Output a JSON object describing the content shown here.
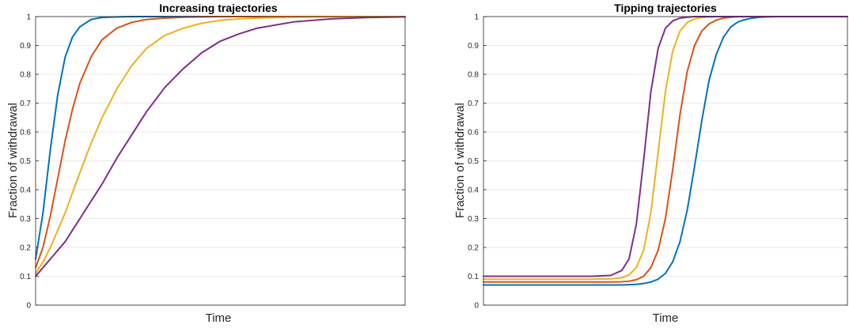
{
  "chart_data": [
    {
      "type": "line",
      "title": "Increasing trajectories",
      "xlabel": "Time",
      "ylabel": "Fraction of withdrawal",
      "ylim": [
        0,
        1
      ],
      "yticks": [
        "0",
        "0.1",
        "0.2",
        "0.3",
        "0.4",
        "0.5",
        "0.6",
        "0.7",
        "0.8",
        "0.9",
        "1"
      ],
      "grid": true,
      "x": [
        0,
        0.02,
        0.04,
        0.06,
        0.08,
        0.1,
        0.12,
        0.15,
        0.18,
        0.22,
        0.26,
        0.3,
        0.35,
        0.4,
        0.45,
        0.5,
        0.55,
        0.6,
        0.7,
        0.8,
        0.9,
        1.0
      ],
      "series": [
        {
          "color": "#0072BD",
          "values": [
            0.16,
            0.32,
            0.54,
            0.73,
            0.86,
            0.93,
            0.965,
            0.99,
            0.997,
            0.999,
            1,
            1,
            1,
            1,
            1,
            1,
            1,
            1,
            1,
            1,
            1,
            1
          ]
        },
        {
          "color": "#D95319",
          "values": [
            0.13,
            0.2,
            0.31,
            0.44,
            0.57,
            0.68,
            0.77,
            0.86,
            0.92,
            0.96,
            0.98,
            0.99,
            0.995,
            0.998,
            0.999,
            1,
            1,
            1,
            1,
            1,
            1,
            1
          ]
        },
        {
          "color": "#EDB120",
          "values": [
            0.11,
            0.15,
            0.2,
            0.26,
            0.32,
            0.39,
            0.46,
            0.56,
            0.65,
            0.75,
            0.83,
            0.89,
            0.935,
            0.96,
            0.977,
            0.987,
            0.992,
            0.995,
            0.998,
            0.999,
            1,
            1
          ]
        },
        {
          "color": "#7E2F8E",
          "values": [
            0.1,
            0.13,
            0.16,
            0.19,
            0.22,
            0.26,
            0.3,
            0.36,
            0.42,
            0.51,
            0.59,
            0.67,
            0.755,
            0.82,
            0.875,
            0.915,
            0.94,
            0.96,
            0.982,
            0.992,
            0.997,
            0.999
          ]
        }
      ]
    },
    {
      "type": "line",
      "title": "Tipping trajectories",
      "xlabel": "Time",
      "ylabel": "Fraction of withdrawal",
      "ylim": [
        0,
        1
      ],
      "yticks": [
        "0",
        "0.1",
        "0.2",
        "0.3",
        "0.4",
        "0.5",
        "0.6",
        "0.7",
        "0.8",
        "0.9",
        "1"
      ],
      "grid": true,
      "x": [
        0,
        0.1,
        0.2,
        0.3,
        0.35,
        0.38,
        0.4,
        0.42,
        0.44,
        0.46,
        0.48,
        0.5,
        0.52,
        0.54,
        0.56,
        0.58,
        0.6,
        0.62,
        0.64,
        0.66,
        0.68,
        0.7,
        0.72,
        0.74,
        0.76,
        0.8,
        0.85,
        0.9,
        1.0
      ],
      "series": [
        {
          "color": "#0072BD",
          "values": [
            0.07,
            0.07,
            0.07,
            0.07,
            0.07,
            0.07,
            0.071,
            0.072,
            0.075,
            0.08,
            0.09,
            0.11,
            0.15,
            0.22,
            0.33,
            0.48,
            0.64,
            0.78,
            0.87,
            0.93,
            0.965,
            0.982,
            0.99,
            0.995,
            0.998,
            1,
            1,
            1,
            1
          ]
        },
        {
          "color": "#D95319",
          "values": [
            0.08,
            0.08,
            0.08,
            0.08,
            0.08,
            0.081,
            0.083,
            0.088,
            0.1,
            0.13,
            0.19,
            0.3,
            0.47,
            0.66,
            0.81,
            0.9,
            0.95,
            0.975,
            0.988,
            0.995,
            0.998,
            1,
            1,
            1,
            1,
            1,
            1,
            1,
            1
          ]
        },
        {
          "color": "#EDB120",
          "values": [
            0.09,
            0.09,
            0.09,
            0.09,
            0.091,
            0.095,
            0.105,
            0.13,
            0.19,
            0.32,
            0.53,
            0.74,
            0.88,
            0.95,
            0.98,
            0.992,
            0.997,
            0.999,
            1,
            1,
            1,
            1,
            1,
            1,
            1,
            1,
            1,
            1,
            1
          ]
        },
        {
          "color": "#7E2F8E",
          "values": [
            0.1,
            0.1,
            0.1,
            0.1,
            0.103,
            0.12,
            0.16,
            0.28,
            0.5,
            0.74,
            0.89,
            0.96,
            0.985,
            0.995,
            0.998,
            1,
            1,
            1,
            1,
            1,
            1,
            1,
            1,
            1,
            1,
            1,
            1,
            1,
            1
          ]
        }
      ]
    }
  ]
}
